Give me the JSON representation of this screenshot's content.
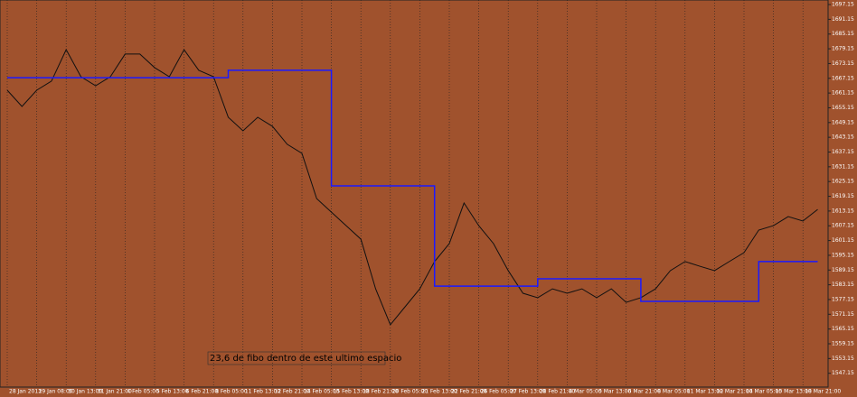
{
  "chart_data": {
    "type": "line",
    "annotation": "23,6 de fibo dentro de este ultimo espacio",
    "categories": [
      "28 Jan 2013",
      null,
      "29 Jan 08:00",
      null,
      "30 Jan 13:00",
      null,
      "31 Jan 21:00",
      null,
      "4 Feb 05:00",
      null,
      "5 Feb 13:00",
      null,
      "6 Feb 21:00",
      null,
      "8 Feb 05:00",
      null,
      "11 Feb 13:00",
      null,
      "12 Feb 21:00",
      null,
      "14 Feb 05:00",
      null,
      "15 Feb 13:00",
      null,
      "18 Feb 21:00",
      null,
      "20 Feb 05:00",
      null,
      "21 Feb 13:00",
      null,
      "22 Feb 21:00",
      null,
      "26 Feb 05:00",
      null,
      "27 Feb 13:00",
      null,
      "28 Feb 21:00",
      null,
      "4 Mar 05:00",
      null,
      "5 Mar 13:00",
      null,
      "6 Mar 21:00",
      null,
      "8 Mar 05:00",
      null,
      "11 Mar 13:00",
      null,
      "12 Mar 21:00",
      null,
      "14 Mar 05:00",
      null,
      "15 Mar 13:00",
      null,
      "18 Mar 21:00",
      null
    ],
    "series": [
      {
        "color": "#111111",
        "step": false,
        "values": [
          1662.3,
          1655.7,
          1662.3,
          1666.0,
          1678.8,
          1667.8,
          1664.1,
          1667.8,
          1677.0,
          1677.0,
          1671.5,
          1667.8,
          1678.8,
          1670.4,
          1667.8,
          1651.3,
          1645.8,
          1651.3,
          1647.6,
          1640.3,
          1636.6,
          1618.2,
          1612.7,
          1607.2,
          1601.7,
          1581.5,
          1566.9,
          1574.2,
          1581.5,
          1592.6,
          1599.9,
          1616.4,
          1607.2,
          1599.9,
          1588.9,
          1579.7,
          1577.9,
          1581.5,
          1579.7,
          1581.5,
          1577.9,
          1581.5,
          1576.0,
          1577.9,
          1581.5,
          1588.9,
          1592.6,
          1590.7,
          1588.9,
          1592.6,
          1596.2,
          1605.4,
          1607.2,
          1610.9,
          1609.1,
          1613.8
        ]
      },
      {
        "color": "#1a1aff",
        "step": true,
        "values": [
          1667.4,
          1667.4,
          1667.4,
          1667.4,
          1667.4,
          1667.4,
          1667.4,
          1667.4,
          1667.4,
          1667.4,
          1667.4,
          1667.4,
          1667.4,
          1667.4,
          1667.4,
          1670.4,
          1670.4,
          1670.4,
          1670.4,
          1670.4,
          1670.4,
          1670.4,
          1623.4,
          1623.4,
          1623.4,
          1623.4,
          1623.4,
          1623.4,
          1623.4,
          1582.6,
          1582.6,
          1582.6,
          1582.6,
          1582.6,
          1582.6,
          1582.6,
          1585.6,
          1585.6,
          1585.6,
          1585.6,
          1585.6,
          1585.6,
          1585.6,
          1576.4,
          1576.4,
          1576.4,
          1576.4,
          1576.4,
          1576.4,
          1576.4,
          1576.4,
          1592.6,
          1592.6,
          1592.6,
          1592.6,
          1592.6
        ]
      }
    ],
    "ylim": [
      1541.9,
      1699.0
    ],
    "yticks": [
      1547.15,
      1553.15,
      1559.15,
      1565.15,
      1571.15,
      1577.15,
      1583.15,
      1589.15,
      1595.15,
      1601.15,
      1607.15,
      1613.15,
      1619.15,
      1625.15,
      1631.15,
      1637.15,
      1643.15,
      1649.15,
      1655.15,
      1661.15,
      1667.15,
      1673.15,
      1679.15,
      1685.15,
      1691.15,
      1697.15
    ]
  }
}
